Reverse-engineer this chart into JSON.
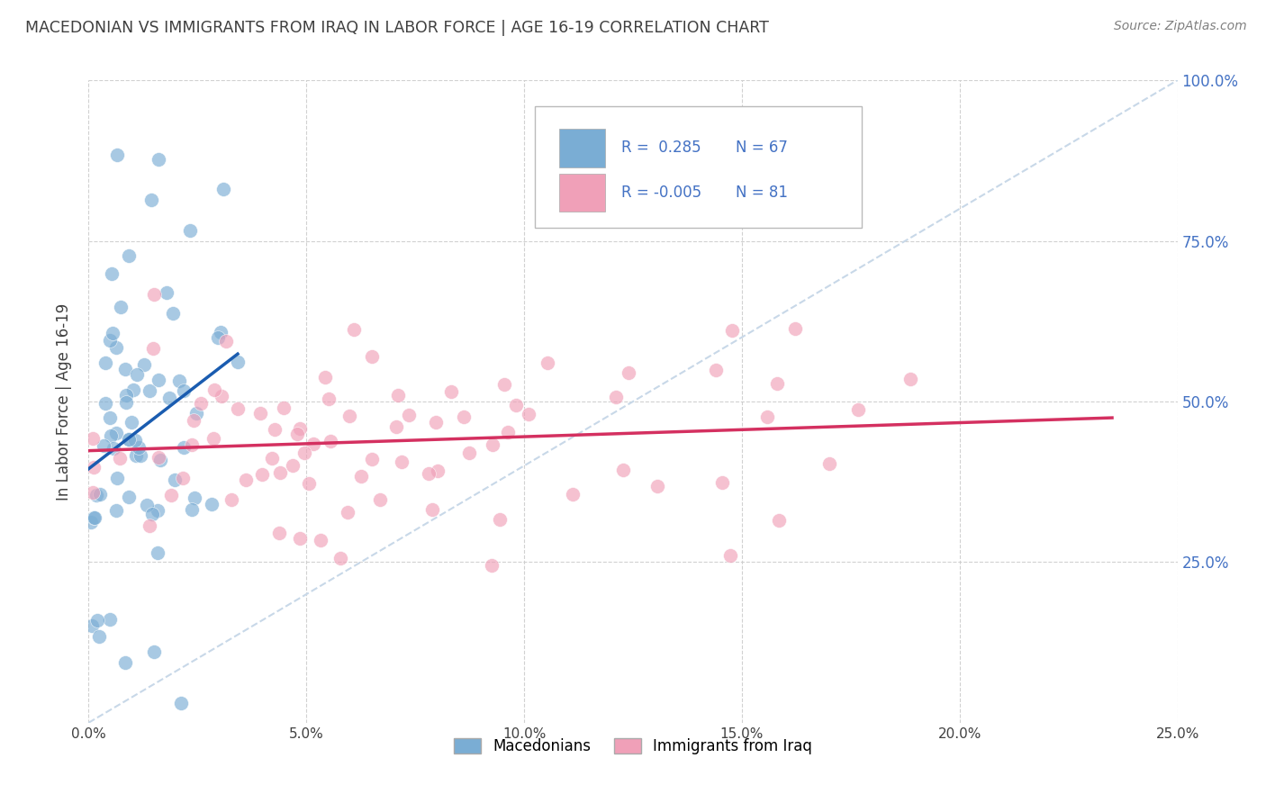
{
  "title": "MACEDONIAN VS IMMIGRANTS FROM IRAQ IN LABOR FORCE | AGE 16-19 CORRELATION CHART",
  "source": "Source: ZipAtlas.com",
  "ylabel": "In Labor Force | Age 16-19",
  "xlim": [
    0.0,
    0.25
  ],
  "ylim": [
    0.0,
    1.0
  ],
  "xtick_labels": [
    "0.0%",
    "5.0%",
    "10.0%",
    "15.0%",
    "20.0%",
    "25.0%"
  ],
  "xtick_values": [
    0.0,
    0.05,
    0.1,
    0.15,
    0.2,
    0.25
  ],
  "ytick_labels": [
    "25.0%",
    "50.0%",
    "75.0%",
    "100.0%"
  ],
  "ytick_values": [
    0.25,
    0.5,
    0.75,
    1.0
  ],
  "mace_R": 0.285,
  "mace_N": 67,
  "iraq_R": -0.005,
  "iraq_N": 81,
  "mace_color": "#7aadd4",
  "iraq_color": "#f0a0b8",
  "mace_line_color": "#1a5cb0",
  "iraq_line_color": "#d43060",
  "diagonal_color": "#c8d8e8",
  "background_color": "#ffffff",
  "grid_color": "#cccccc",
  "title_color": "#404040",
  "right_ytick_color": "#4472c4",
  "seed": 42
}
